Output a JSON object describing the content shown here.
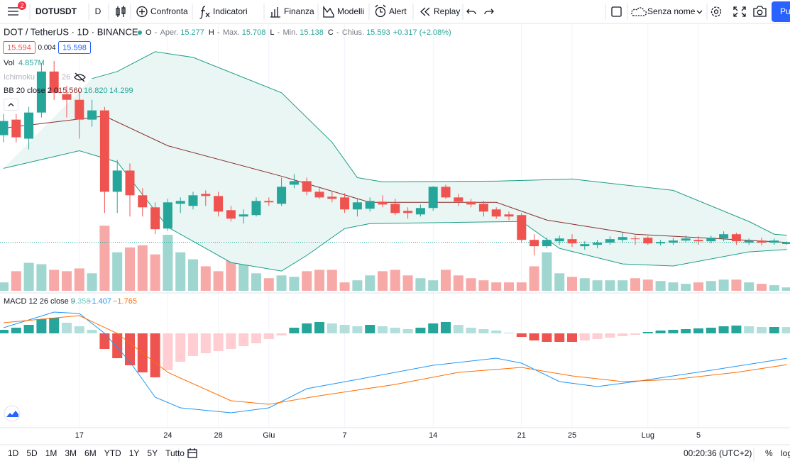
{
  "toolbar": {
    "badge": "2",
    "symbol": "DOTUSDT",
    "interval": "D",
    "buttons": [
      "Confronta",
      "Indicatori",
      "Finanza",
      "Modelli",
      "Alert",
      "Replay"
    ],
    "layout_name": "Senza nome",
    "publish": "Pu"
  },
  "legend": {
    "symbol": "DOT / TetherUS · 1D · BINANCE",
    "ohlc": [
      {
        "key": "O",
        "name": "Aper.",
        "value": "15.277"
      },
      {
        "key": "H",
        "name": "Max.",
        "value": "15.708"
      },
      {
        "key": "L",
        "name": "Min.",
        "value": "15.138"
      },
      {
        "key": "C",
        "name": "Chius.",
        "value": "15.593"
      }
    ],
    "change": "+0.317 (+2.08%)",
    "bid": "15.594",
    "spread": "0.004",
    "ask": "15.598",
    "volume": {
      "name": "Vol",
      "value": "4.857M"
    },
    "ichimoku": {
      "name": "Ichimoku",
      "value": "26"
    },
    "bb": {
      "name": "BB 20 close 2 0",
      "values": [
        "15.560",
        "16.820",
        "14.299"
      ]
    },
    "macd": {
      "name": "MACD 12 26 close 9",
      "values": [
        "0.358",
        "−1.407",
        "−1.765"
      ]
    }
  },
  "chart_data": {
    "type": "candlestick",
    "open": [
      34.5,
      37.25,
      33.88,
      38.5,
      45.75,
      41.75,
      40.75,
      37.25,
      38.88,
      24.5,
      28.25,
      23.88,
      21.75,
      18,
      22.38,
      22,
      24.13,
      23.75,
      21.25,
      20.13,
      20.38,
      22.88,
      22.38,
      25.75,
      26.38,
      24.5,
      23.63,
      23.5,
      21.38,
      21.5,
      22.75,
      22.38,
      21.13,
      20.5,
      21.63,
      25.38,
      23.5,
      22.75,
      22.38,
      21.38,
      20.5,
      20.38,
      16,
      14.88,
      15.75,
      16.13,
      14.88,
      15.13,
      15.5,
      16,
      16.25,
      16.38,
      15.38,
      15.5,
      15.88,
      16,
      15.75,
      16.25,
      17,
      15.5,
      15.88,
      15.5,
      15.277
    ],
    "high": [
      38.25,
      38.25,
      39.5,
      47.25,
      47.63,
      43.25,
      42.25,
      40.75,
      39.5,
      30.13,
      29.5,
      25.13,
      22.63,
      23.25,
      23.5,
      24.5,
      24.75,
      24.5,
      22,
      21.38,
      23.5,
      23.5,
      27,
      27.63,
      27,
      25.13,
      24.5,
      24.25,
      23.25,
      23.5,
      23.88,
      23.25,
      21.75,
      22.25,
      25.5,
      25.75,
      24.13,
      23.25,
      22.88,
      21.75,
      21,
      20.75,
      17,
      16.38,
      16.75,
      17,
      15.75,
      16,
      16.63,
      17.25,
      16.75,
      16.63,
      16,
      16.38,
      16.75,
      16.63,
      16.75,
      17.5,
      17.25,
      16.25,
      16.38,
      16.25,
      15.708
    ],
    "low": [
      33.25,
      33.25,
      32,
      37.63,
      40.75,
      37.63,
      33.88,
      36,
      20.75,
      20.75,
      20.13,
      20.13,
      17,
      17.63,
      20.75,
      21.38,
      22,
      20.13,
      19.25,
      18.88,
      20.13,
      22,
      22,
      25.13,
      23.88,
      23.25,
      22.63,
      20.75,
      20.13,
      21,
      21.75,
      20.38,
      19.75,
      20.13,
      21.13,
      23.25,
      22,
      21.75,
      20.13,
      19.75,
      19.5,
      15.5,
      13.25,
      14.5,
      15.13,
      14.75,
      14.25,
      14.5,
      15.13,
      15.5,
      15.13,
      15.13,
      15,
      15.13,
      15.5,
      15.13,
      15.38,
      15.75,
      15.13,
      15.13,
      15,
      15.13,
      15.138
    ],
    "close": [
      37,
      34.13,
      38.5,
      45.75,
      42,
      40.75,
      37.25,
      38.88,
      24.5,
      28.25,
      23.88,
      21.75,
      17.88,
      22.63,
      22.88,
      23.88,
      23.75,
      21,
      19.75,
      20.5,
      22.88,
      22.63,
      25.38,
      26.38,
      24.5,
      23.5,
      23.25,
      21.38,
      22.63,
      22.88,
      22.25,
      20.75,
      20.75,
      21.63,
      25.38,
      23.5,
      22.75,
      22.25,
      21,
      20.13,
      20.13,
      16,
      14.88,
      16,
      16.25,
      15.38,
      15.25,
      15.5,
      16.13,
      16.5,
      16.13,
      15.38,
      15.63,
      15.88,
      16.25,
      15.75,
      16.38,
      17,
      15.75,
      15.88,
      15.5,
      15.88,
      15.593
    ],
    "volume": [
      12,
      28,
      40,
      38,
      30,
      28,
      32,
      25,
      93,
      55,
      62,
      65,
      52,
      80,
      55,
      45,
      35,
      28,
      55,
      40,
      25,
      18,
      22,
      20,
      28,
      30,
      30,
      12,
      15,
      22,
      28,
      30,
      22,
      18,
      15,
      30,
      22,
      18,
      15,
      12,
      12,
      12,
      35,
      55,
      25,
      20,
      18,
      15,
      15,
      15,
      18,
      16,
      14,
      12,
      10,
      12,
      14,
      16,
      16,
      12,
      10,
      8,
      4.857
    ],
    "ylim": [
      7,
      54
    ],
    "volume_ylim": [
      0,
      380
    ],
    "bb_upper": {
      "x": [
        7,
        9,
        12,
        15,
        22,
        26,
        28,
        30,
        39,
        45,
        53,
        59,
        61,
        62
      ],
      "values": [
        44.5,
        45.75,
        49.25,
        48.25,
        42,
        33.25,
        27,
        26.25,
        26.38,
        26.75,
        24.75,
        19.25,
        17,
        16.82
      ]
    },
    "bb_lower": {
      "x": [
        0,
        6,
        9,
        13,
        18,
        22,
        24,
        27,
        29,
        41,
        44,
        49,
        53,
        59,
        62
      ],
      "values": [
        28.63,
        31.75,
        29.75,
        18.25,
        12,
        10.5,
        13.25,
        18,
        18.88,
        19.25,
        14.5,
        11.75,
        11.38,
        13.88,
        14.299
      ]
    },
    "bb_basis": {
      "x": [
        0,
        8,
        13,
        22,
        29,
        39,
        43,
        50,
        62
      ],
      "values": [
        35.75,
        37.88,
        32.63,
        27.25,
        22.63,
        22.63,
        19.5,
        17,
        15.56
      ]
    },
    "macd_hist": [
      0.2,
      0.32,
      0.48,
      0.8,
      0.88,
      0.6,
      0.4,
      0.2,
      -0.88,
      -1.4,
      -1.8,
      -2.2,
      -2.48,
      -2.08,
      -1.6,
      -1.28,
      -1.12,
      -1,
      -0.88,
      -0.72,
      -0.56,
      -0.32,
      -0.12,
      0.32,
      0.56,
      0.64,
      0.56,
      0.48,
      0.4,
      0.48,
      0.4,
      0.32,
      0.24,
      0.32,
      0.56,
      0.64,
      0.48,
      0.32,
      0.24,
      0.16,
      0.04,
      -0.2,
      -0.4,
      -0.48,
      -0.48,
      -0.48,
      -0.4,
      -0.32,
      -0.24,
      -0.16,
      -0.08,
      0.08,
      0.16,
      0.2,
      0.24,
      0.28,
      0.32,
      0.4,
      0.44,
      0.4,
      0.36,
      0.36,
      0.358
    ],
    "macd": {
      "x": [
        0,
        4,
        6,
        8,
        10,
        12,
        14,
        18,
        21,
        24,
        28,
        34,
        39,
        41,
        44,
        47,
        50,
        56,
        62
      ],
      "values": [
        0.32,
        1.2,
        1.12,
        0,
        -1.6,
        -3.6,
        -4.2,
        -4.48,
        -4.2,
        -3.12,
        -2.6,
        -1.8,
        -1.4,
        -1.68,
        -2.72,
        -3,
        -2.72,
        -2.08,
        -1.407
      ]
    },
    "signal": {
      "x": [
        0,
        6,
        9,
        13,
        18,
        21,
        25,
        31,
        36,
        41,
        45,
        49,
        53,
        58,
        62
      ],
      "values": [
        0.6,
        1,
        0,
        -2.2,
        -3.8,
        -4,
        -3.52,
        -2.88,
        -2.2,
        -1.92,
        -2.4,
        -2.72,
        -2.6,
        -2.2,
        -1.765
      ]
    },
    "macd_ylim": [
      -5.2,
      2.08
    ],
    "xticks": [
      {
        "value": 6,
        "label": "17"
      },
      {
        "value": 13,
        "label": "24"
      },
      {
        "value": 17,
        "label": "28"
      },
      {
        "value": 21,
        "label": "Giu"
      },
      {
        "value": 27,
        "label": "7"
      },
      {
        "value": 34,
        "label": "14"
      },
      {
        "value": 41,
        "label": "21"
      },
      {
        "value": 45,
        "label": "25"
      },
      {
        "value": 51,
        "label": "Lug"
      },
      {
        "value": 55,
        "label": "5"
      }
    ],
    "colors": {
      "up": "#26a69a",
      "down": "#ef5350",
      "vol_up": "#9fd6d0",
      "vol_down": "#f7a9a7",
      "bb_band": "#1e9e86",
      "bb_basis": "#8b2d2d",
      "bb_fill": "#e9f6f4",
      "hist_up": "#26a69a",
      "hist_up_light": "#b2dfdb",
      "hist_down": "#ef5350",
      "hist_down_light": "#ffcdd2",
      "macd": "#2196f3",
      "signal": "#ff6d00"
    }
  },
  "bottom_bar": {
    "ranges": [
      "1D",
      "5D",
      "1M",
      "3M",
      "6M",
      "YTD",
      "1Y",
      "5Y",
      "Tutto"
    ],
    "clock": "00:20:36 (UTC+2)",
    "percent": "%",
    "log": "log"
  }
}
